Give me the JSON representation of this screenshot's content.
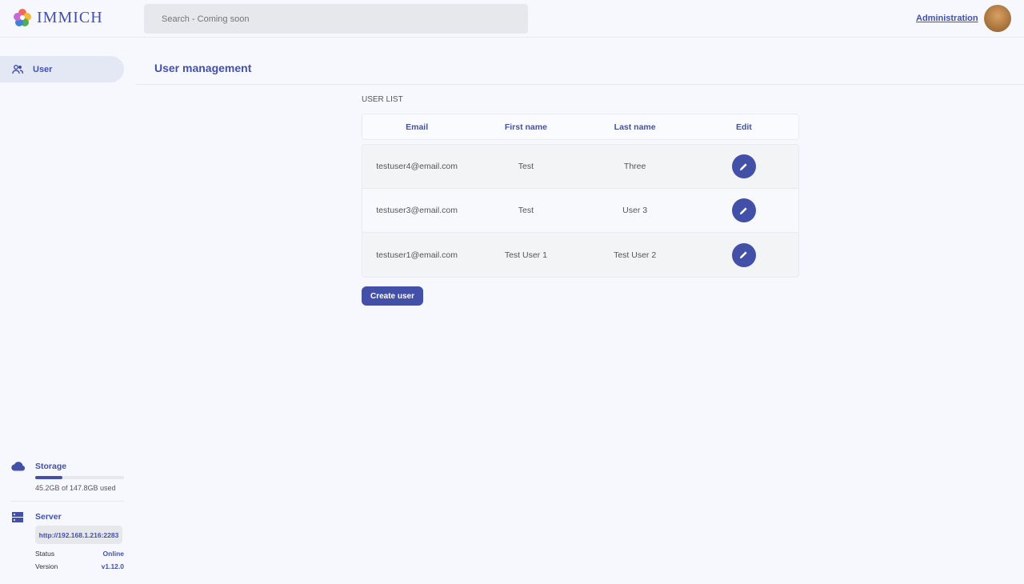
{
  "app": {
    "name": "IMMICH"
  },
  "header": {
    "search_placeholder": "Search - Coming soon",
    "admin_link": "Administration"
  },
  "sidebar": {
    "items": [
      {
        "label": "User",
        "icon": "users-icon",
        "active": true
      }
    ]
  },
  "main": {
    "title": "User management",
    "section": "USER LIST",
    "columns": [
      "Email",
      "First name",
      "Last name",
      "Edit"
    ],
    "rows": [
      {
        "email": "testuser4@email.com",
        "first": "Test",
        "last": "Three"
      },
      {
        "email": "testuser3@email.com",
        "first": "Test",
        "last": "User 3"
      },
      {
        "email": "testuser1@email.com",
        "first": "Test User 1",
        "last": "Test User 2"
      }
    ],
    "create_label": "Create user"
  },
  "storage": {
    "label": "Storage",
    "usage": "45.2GB of 147.8GB used",
    "used_percent": 30.6
  },
  "server": {
    "label": "Server",
    "url": "http://192.168.1.216:2283",
    "status_label": "Status",
    "status": "Online",
    "version_label": "Version",
    "version": "v1.12.0"
  },
  "colors": {
    "accent": "#4250a8"
  }
}
